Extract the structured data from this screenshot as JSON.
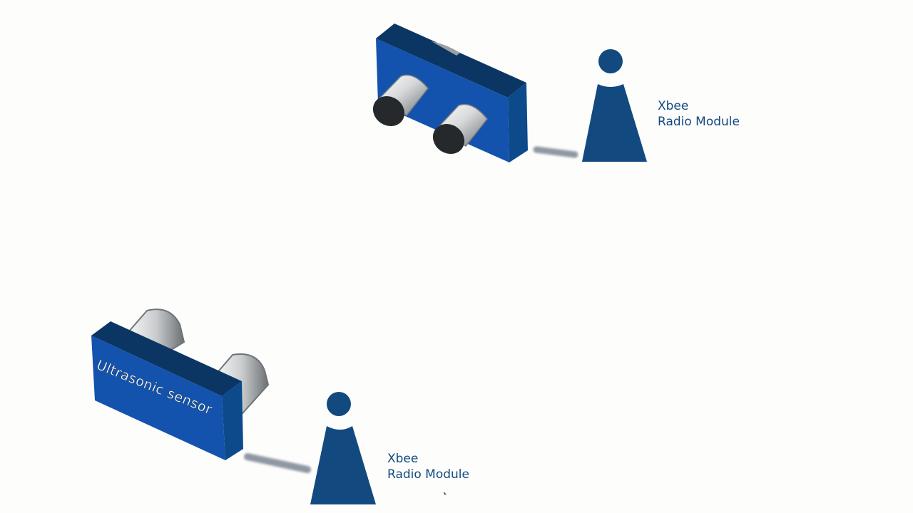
{
  "sensor_text": "Ultrasonic sensor",
  "modules": [
    {
      "line1": "Xbee",
      "line2": "Radio Module"
    },
    {
      "line1": "Xbee",
      "line2": "Radio Module"
    }
  ],
  "colors": {
    "board_front": "#1353ad",
    "board_top": "#0b3563",
    "board_side": "#0d4a8c",
    "xbee_module": "#124a80",
    "cable": "#8f97a3",
    "transducer_cap": "#25292b",
    "background": "#fdfdfc",
    "label_text": "#124a80",
    "sensor_text": "#ffffff"
  }
}
